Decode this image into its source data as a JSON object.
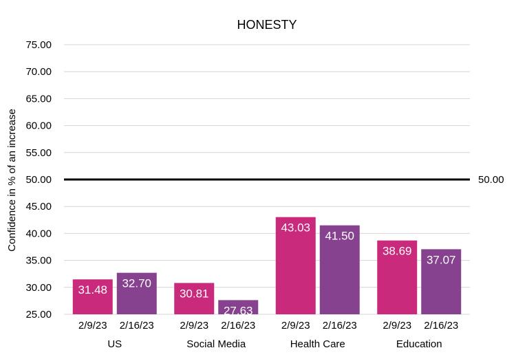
{
  "chart_data": {
    "type": "bar",
    "title": "HONESTY",
    "ylabel": "Confidence in % of an increase",
    "xlabel": "",
    "ylim": [
      25,
      75
    ],
    "yticks": [
      "75.00",
      "70.00",
      "65.00",
      "60.00",
      "55.00",
      "50.00",
      "45.00",
      "40.00",
      "35.00",
      "30.00",
      "25.00"
    ],
    "grid": true,
    "reference_line": {
      "value": 50,
      "label": "50.00"
    },
    "groups": [
      {
        "name": "US",
        "bars": [
          {
            "label": "2/9/23",
            "value": 31.48,
            "text": "31.48",
            "color": "#C92A7C"
          },
          {
            "label": "2/16/23",
            "value": 32.7,
            "text": "32.70",
            "color": "#86428F"
          }
        ]
      },
      {
        "name": "Social Media",
        "bars": [
          {
            "label": "2/9/23",
            "value": 30.81,
            "text": "30.81",
            "color": "#C92A7C"
          },
          {
            "label": "2/16/23",
            "value": 27.63,
            "text": "27.63",
            "color": "#86428F"
          }
        ]
      },
      {
        "name": "Health Care",
        "bars": [
          {
            "label": "2/9/23",
            "value": 43.03,
            "text": "43.03",
            "color": "#C92A7C"
          },
          {
            "label": "2/16/23",
            "value": 41.5,
            "text": "41.50",
            "color": "#86428F"
          }
        ]
      },
      {
        "name": "Education",
        "bars": [
          {
            "label": "2/9/23",
            "value": 38.69,
            "text": "38.69",
            "color": "#C92A7C"
          },
          {
            "label": "2/16/23",
            "value": 37.07,
            "text": "37.07",
            "color": "#86428F"
          }
        ]
      }
    ]
  }
}
